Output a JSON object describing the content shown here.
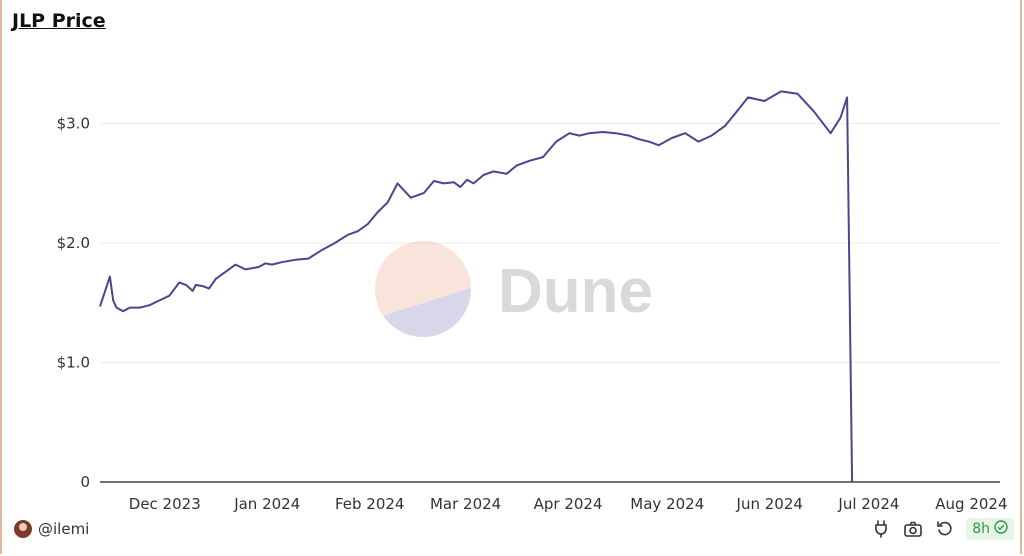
{
  "header": {
    "title": "JLP Price"
  },
  "watermark": {
    "text": "Dune"
  },
  "footer": {
    "author": "@ilemi",
    "age_badge": "8h",
    "icons": [
      "plug-icon",
      "camera-icon",
      "refresh-icon",
      "check-circle-icon"
    ]
  },
  "colors": {
    "line": "#4b4590",
    "grid": "#ececec",
    "badge_text": "#2e9a48",
    "badge_bg": "#e7f5e9"
  },
  "chart_data": {
    "type": "line",
    "title": "JLP Price",
    "xlabel": "",
    "ylabel": "",
    "ylim": [
      0,
      3.6
    ],
    "yticks": [
      0,
      1.0,
      2.0,
      3.0
    ],
    "ytick_labels": [
      "0",
      "$1.0",
      "$2.0",
      "$3.0"
    ],
    "xticks": [
      "2023-12-01",
      "2024-01-01",
      "2024-02-01",
      "2024-03-01",
      "2024-04-01",
      "2024-05-01",
      "2024-06-01",
      "2024-07-01",
      "2024-08-01"
    ],
    "xtick_labels": [
      "Dec 2023",
      "Jan 2024",
      "Feb 2024",
      "Mar 2024",
      "Apr 2024",
      "May 2024",
      "Jun 2024",
      "Jul 2024",
      "Aug 2024"
    ],
    "grid": true,
    "series": [
      {
        "x": [
          "2023-11-22",
          "2023-11-25",
          "2023-11-26",
          "2023-11-27",
          "2023-11-29",
          "2023-12-01",
          "2023-12-04",
          "2023-12-07",
          "2023-12-10",
          "2023-12-13",
          "2023-12-16",
          "2023-12-18",
          "2023-12-20",
          "2023-12-21",
          "2023-12-23",
          "2023-12-25",
          "2023-12-27",
          "2023-12-30",
          "2024-01-02",
          "2024-01-05",
          "2024-01-07",
          "2024-01-09",
          "2024-01-11",
          "2024-01-13",
          "2024-01-16",
          "2024-01-20",
          "2024-01-24",
          "2024-01-28",
          "2024-02-01",
          "2024-02-05",
          "2024-02-08",
          "2024-02-11",
          "2024-02-14",
          "2024-02-17",
          "2024-02-20",
          "2024-02-24",
          "2024-02-28",
          "2024-03-02",
          "2024-03-05",
          "2024-03-08",
          "2024-03-10",
          "2024-03-12",
          "2024-03-14",
          "2024-03-17",
          "2024-03-20",
          "2024-03-24",
          "2024-03-27",
          "2024-03-31",
          "2024-04-04",
          "2024-04-08",
          "2024-04-12",
          "2024-04-15",
          "2024-04-18",
          "2024-04-22",
          "2024-04-26",
          "2024-04-30",
          "2024-05-03",
          "2024-05-06",
          "2024-05-09",
          "2024-05-13",
          "2024-05-17",
          "2024-05-21",
          "2024-05-25",
          "2024-05-29",
          "2024-06-01",
          "2024-06-05",
          "2024-06-10",
          "2024-06-15",
          "2024-06-20",
          "2024-06-25",
          "2024-06-30",
          "2024-07-03",
          "2024-07-05",
          "2024-07-07",
          "2024-07-10",
          "2024-07-13",
          "2024-07-16",
          "2024-07-20",
          "2024-07-24",
          "2024-07-27",
          "2024-07-30",
          "2024-08-02",
          "2024-08-05",
          "2024-08-07",
          "2024-08-09",
          "2024-08-12",
          "2024-08-14",
          "2024-08-15",
          "2024-08-16"
        ],
        "values": [
          1.47,
          1.72,
          1.52,
          1.46,
          1.43,
          1.46,
          1.46,
          1.48,
          1.52,
          1.56,
          1.67,
          1.65,
          1.6,
          1.65,
          1.64,
          1.62,
          1.7,
          1.76,
          1.82,
          1.78,
          1.79,
          1.8,
          1.83,
          1.82,
          1.84,
          1.86,
          1.87,
          1.94,
          2.0,
          2.07,
          2.1,
          2.16,
          2.26,
          2.34,
          2.5,
          2.38,
          2.42,
          2.52,
          2.5,
          2.51,
          2.47,
          2.53,
          2.5,
          2.57,
          2.6,
          2.58,
          2.65,
          2.69,
          2.72,
          2.85,
          2.92,
          2.9,
          2.92,
          2.93,
          2.92,
          2.9,
          2.87,
          2.85,
          2.82,
          2.88,
          2.92,
          2.85,
          2.9,
          2.98,
          3.08,
          3.22,
          3.19,
          3.27,
          3.25,
          3.1,
          2.92,
          3.05,
          3.22,
          0.0,
          0.0,
          0.0,
          0.0,
          0.0,
          0.0,
          0.0,
          0.0,
          0.0,
          0.0,
          0.0,
          0.0,
          0.0,
          0.0,
          0.0,
          0.0
        ]
      }
    ]
  }
}
